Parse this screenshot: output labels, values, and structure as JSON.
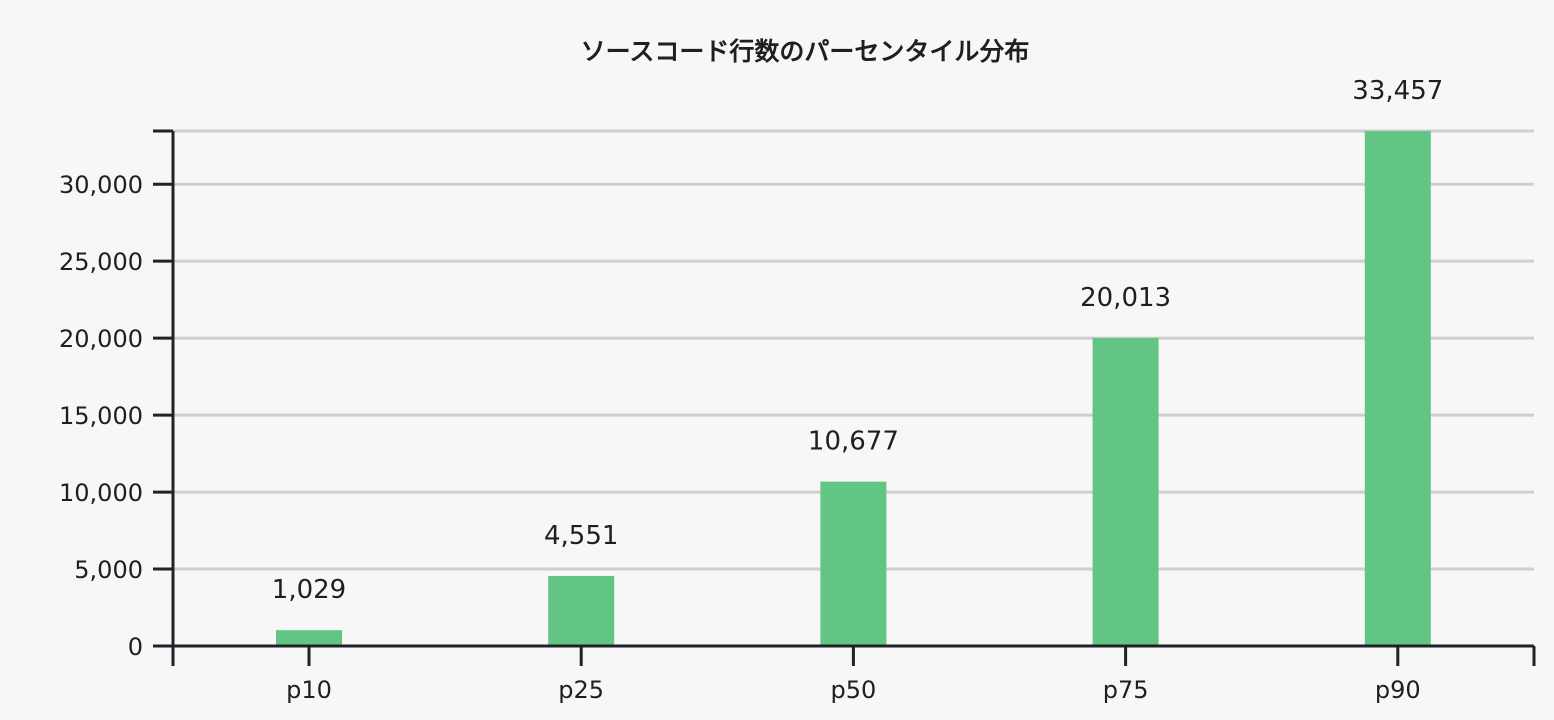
{
  "chart_data": {
    "type": "bar",
    "title": "ソースコード行数のパーセンタイル分布",
    "xlabel": "",
    "ylabel": "",
    "categories": [
      "p10",
      "p25",
      "p50",
      "p75",
      "p90"
    ],
    "values": [
      1029,
      4551,
      10677,
      20013,
      33457
    ],
    "data_labels": [
      "1,029",
      "4,551",
      "10,677",
      "20,013",
      "33,457"
    ],
    "ylim": [
      0,
      33457
    ],
    "yticks": [
      0,
      5000,
      10000,
      15000,
      20000,
      25000,
      30000
    ],
    "ytick_labels": [
      "0",
      "5,000",
      "10,000",
      "15,000",
      "20,000",
      "25,000",
      "30,000"
    ],
    "grid": true,
    "bar_color": "#63c584",
    "background_color": "#f7f7f7",
    "grid_color": "#cfcfcf",
    "axis_color": "#1f2328",
    "text_color": "#1f1f1f"
  }
}
